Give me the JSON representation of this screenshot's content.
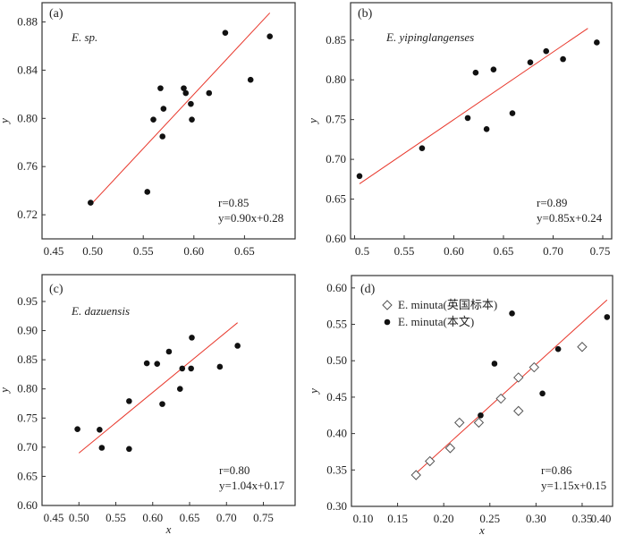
{
  "colors": {
    "points": "#111111",
    "fit_line": "#e8372b",
    "axes": "#333333"
  },
  "chart_data": [
    {
      "type": "scatter",
      "panel_label": "(a)",
      "species": "E. sp.",
      "xlabel": "",
      "ylabel": "y",
      "xlim": [
        0.45,
        0.7
      ],
      "ylim": [
        0.7,
        0.896
      ],
      "xticks": [
        "0.45",
        "0.50",
        "0.55",
        "0.60",
        "0.65"
      ],
      "yticks": [
        "0.72",
        "0.76",
        "0.80",
        "0.84",
        "0.88"
      ],
      "grid": false,
      "series": [
        {
          "marker": "filled-circle",
          "points": [
            [
              0.498,
              0.73
            ],
            [
              0.554,
              0.739
            ],
            [
              0.56,
              0.799
            ],
            [
              0.567,
              0.825
            ],
            [
              0.57,
              0.808
            ],
            [
              0.569,
              0.785
            ],
            [
              0.59,
              0.825
            ],
            [
              0.592,
              0.821
            ],
            [
              0.597,
              0.812
            ],
            [
              0.598,
              0.799
            ],
            [
              0.615,
              0.821
            ],
            [
              0.631,
              0.871
            ],
            [
              0.656,
              0.832
            ],
            [
              0.675,
              0.868
            ]
          ]
        }
      ],
      "fit": {
        "slope": 0.9,
        "intercept": 0.28,
        "x_range": [
          0.5,
          0.675
        ]
      },
      "r_text": "r=0.85",
      "equation": "y=0.90x+0.28"
    },
    {
      "type": "scatter",
      "panel_label": "(b)",
      "species": "E. yipinglangenses",
      "xlabel": "",
      "ylabel": "y",
      "xlim": [
        0.496,
        0.759
      ],
      "ylim": [
        0.6,
        0.897
      ],
      "xticks": [
        "0.5",
        "0.55",
        "0.60",
        "0.65",
        "0.70",
        "0.75"
      ],
      "yticks": [
        "0.60",
        "0.65",
        "0.70",
        "0.75",
        "0.80",
        "0.85"
      ],
      "grid": false,
      "series": [
        {
          "marker": "filled-circle",
          "points": [
            [
              0.505,
              0.679
            ],
            [
              0.568,
              0.714
            ],
            [
              0.614,
              0.752
            ],
            [
              0.622,
              0.809
            ],
            [
              0.633,
              0.738
            ],
            [
              0.64,
              0.813
            ],
            [
              0.659,
              0.758
            ],
            [
              0.677,
              0.822
            ],
            [
              0.693,
              0.836
            ],
            [
              0.71,
              0.826
            ],
            [
              0.744,
              0.847
            ]
          ]
        }
      ],
      "fit": {
        "slope": 0.85,
        "intercept": 0.24,
        "x_range": [
          0.505,
          0.735
        ]
      },
      "r_text": "r=0.89",
      "equation": "y=0.85x+0.24"
    },
    {
      "type": "scatter",
      "panel_label": "(c)",
      "species": "E. dazuensis",
      "xlabel": "x",
      "ylabel": "y",
      "xlim": [
        0.45,
        0.793
      ],
      "ylim": [
        0.6,
        0.996
      ],
      "xticks": [
        "0.45",
        "0.50",
        "0.55",
        "0.60",
        "0.65",
        "0.70",
        "0.75"
      ],
      "yticks": [
        "0.60",
        "0.65",
        "0.70",
        "0.75",
        "0.80",
        "0.85",
        "0.90",
        "0.95"
      ],
      "grid": false,
      "series": [
        {
          "marker": "filled-circle",
          "points": [
            [
              0.498,
              0.731
            ],
            [
              0.528,
              0.73
            ],
            [
              0.531,
              0.699
            ],
            [
              0.568,
              0.779
            ],
            [
              0.568,
              0.697
            ],
            [
              0.592,
              0.844
            ],
            [
              0.606,
              0.843
            ],
            [
              0.613,
              0.774
            ],
            [
              0.622,
              0.864
            ],
            [
              0.637,
              0.8
            ],
            [
              0.64,
              0.835
            ],
            [
              0.653,
              0.888
            ],
            [
              0.652,
              0.835
            ],
            [
              0.691,
              0.838
            ],
            [
              0.715,
              0.874
            ]
          ]
        }
      ],
      "fit": {
        "slope": 1.04,
        "intercept": 0.17,
        "x_range": [
          0.5,
          0.715
        ]
      },
      "r_text": "r=0.80",
      "equation": "y=1.04x+0.17"
    },
    {
      "type": "scatter",
      "panel_label": "(d)",
      "species": "",
      "xlabel": "x",
      "ylabel": "y",
      "xlim": [
        0.1,
        0.383
      ],
      "ylim": [
        0.3,
        0.617
      ],
      "xticks": [
        "0.10",
        "0.15",
        "0.20",
        "0.25",
        "0.30",
        "0.35",
        "0.40"
      ],
      "yticks": [
        "0.30",
        "0.35",
        "0.40",
        "0.45",
        "0.50",
        "0.55",
        "0.60"
      ],
      "grid": false,
      "legend": "top-left",
      "series": [
        {
          "name": "E. minuta(英国标本)",
          "name_italic": "E. minuta",
          "name_rest": "(英国标本)",
          "marker": "open-diamond",
          "points": [
            [
              0.17,
              0.343
            ],
            [
              0.185,
              0.362
            ],
            [
              0.207,
              0.38
            ],
            [
              0.217,
              0.415
            ],
            [
              0.238,
              0.415
            ],
            [
              0.262,
              0.448
            ],
            [
              0.281,
              0.477
            ],
            [
              0.281,
              0.431
            ],
            [
              0.298,
              0.491
            ],
            [
              0.35,
              0.519
            ]
          ]
        },
        {
          "name": "E. minuta(本文)",
          "name_italic": "E. minuta",
          "name_rest": "(本文)",
          "marker": "filled-circle",
          "points": [
            [
              0.24,
              0.425
            ],
            [
              0.255,
              0.496
            ],
            [
              0.274,
              0.565
            ],
            [
              0.307,
              0.455
            ],
            [
              0.324,
              0.516
            ],
            [
              0.377,
              0.56
            ]
          ]
        }
      ],
      "fit": {
        "slope": 1.15,
        "intercept": 0.15,
        "x_range": [
          0.17,
          0.377
        ]
      },
      "r_text": "r=0.86",
      "equation": "y=1.15x+0.15"
    }
  ]
}
